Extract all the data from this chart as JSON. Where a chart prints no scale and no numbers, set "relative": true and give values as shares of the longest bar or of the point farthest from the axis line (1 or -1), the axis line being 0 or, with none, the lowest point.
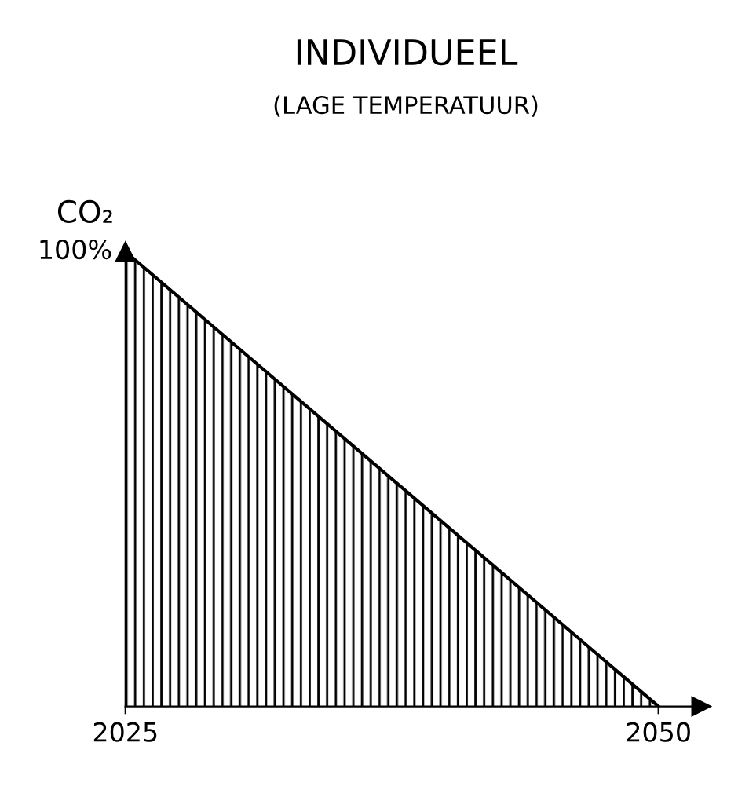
{
  "chart_data": {
    "type": "area",
    "title": "INDIVIDUEEL",
    "subtitle": "(LAGE TEMPERATUUR)",
    "ylabel": "CO₂",
    "relative": true,
    "x": [
      2025,
      2050
    ],
    "series": [
      {
        "color": "#000000",
        "values": [
          1,
          0
        ]
      }
    ],
    "xlim": [
      2025,
      2052
    ],
    "xticks": [
      2025,
      2050
    ],
    "annotations": [
      {
        "text": "100%",
        "x": 2025,
        "y": 1
      }
    ],
    "grid": false,
    "legend": false
  }
}
